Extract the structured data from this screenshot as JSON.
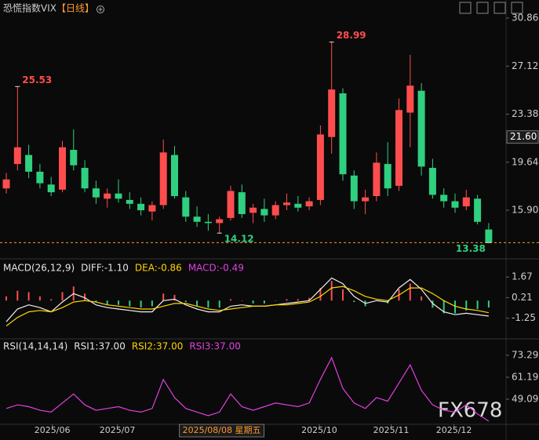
{
  "title": "恐慌指数VIX",
  "period": "【日线】",
  "watermark": "FX678",
  "chart_data": [
    {
      "type": "candlestick",
      "up_color": "#ff4d4d",
      "down_color": "#2fd07f",
      "open": [
        17.6,
        19.5,
        20.2,
        18.9,
        17.9,
        17.5,
        20.6,
        19.2,
        17.6,
        16.8,
        17.2,
        16.7,
        16.4,
        15.8,
        16.3,
        20.2,
        16.9,
        15.4,
        15.0,
        14.9,
        15.3,
        17.3,
        15.7,
        16.0,
        15.5,
        16.3,
        16.4,
        16.2,
        16.7,
        21.6,
        25.0,
        18.6,
        16.6,
        17.0,
        19.5,
        17.8,
        23.5,
        25.2,
        19.2,
        17.1,
        16.6,
        16.2,
        16.8,
        14.4
      ],
      "high": [
        18.8,
        25.53,
        21.0,
        19.5,
        18.5,
        21.3,
        22.2,
        19.8,
        18.2,
        17.6,
        18.3,
        17.3,
        16.9,
        16.6,
        21.4,
        20.9,
        17.4,
        16.2,
        15.6,
        15.4,
        17.8,
        17.9,
        16.4,
        16.8,
        16.6,
        17.2,
        17.0,
        16.9,
        22.5,
        28.99,
        25.4,
        19.0,
        17.5,
        20.4,
        21.2,
        24.6,
        28.0,
        25.8,
        19.9,
        17.6,
        17.2,
        17.5,
        17.1,
        14.9
      ],
      "low": [
        17.2,
        19.0,
        18.4,
        17.6,
        17.0,
        17.3,
        19.0,
        17.3,
        16.4,
        16.1,
        16.5,
        16.0,
        15.5,
        15.1,
        16.0,
        16.8,
        15.0,
        14.6,
        14.3,
        14.12,
        15.1,
        15.3,
        14.9,
        15.0,
        15.2,
        15.9,
        15.8,
        15.9,
        16.3,
        20.3,
        18.2,
        16.0,
        15.6,
        16.6,
        17.0,
        17.4,
        20.8,
        18.6,
        16.8,
        16.1,
        15.7,
        15.9,
        14.8,
        13.38
      ],
      "close": [
        18.3,
        20.8,
        18.9,
        18.0,
        17.3,
        20.8,
        19.4,
        17.6,
        16.9,
        17.2,
        16.8,
        16.4,
        15.9,
        16.3,
        20.4,
        17.0,
        15.4,
        15.0,
        14.9,
        15.2,
        17.4,
        15.6,
        16.1,
        15.5,
        16.3,
        16.5,
        16.1,
        16.6,
        21.8,
        25.3,
        18.7,
        16.6,
        16.9,
        19.6,
        17.6,
        23.7,
        25.6,
        19.3,
        17.1,
        16.6,
        16.1,
        16.9,
        15.0,
        13.38
      ],
      "ylim": [
        12.85,
        31.35
      ],
      "yticks": [
        30.86,
        27.12,
        23.38,
        19.64,
        {
          "value": 15.9,
          "label": "15.90"
        }
      ],
      "price_mark": {
        "value": 21.6,
        "label": "21.60"
      },
      "last_price": 13.38,
      "annotations": [
        {
          "index": 1,
          "value": 25.53,
          "color": "#ff4d4d"
        },
        {
          "index": 29,
          "value": 28.99,
          "color": "#ff4d4d"
        },
        {
          "index": 19,
          "value": 14.12,
          "color": "#2fd07f"
        },
        {
          "index": 43,
          "value": 13.38,
          "color": "#2fd07f"
        }
      ]
    },
    {
      "type": "bar_line",
      "legend": [
        {
          "text": "MACD(26,12,9)",
          "color": "#e6e6e6"
        },
        {
          "text": "DIFF:-1.10",
          "color": "#e6e6e6"
        },
        {
          "text": "DEA:-0.86",
          "color": "#ffd400"
        },
        {
          "text": "MACD:-0.49",
          "color": "#e040e0"
        }
      ],
      "up_color": "#ff4d4d",
      "down_color": "#2fd07f",
      "series": [
        {
          "type": "bar",
          "values": [
            0.3,
            0.7,
            0.6,
            0.3,
            0.1,
            0.6,
            1.0,
            0.5,
            -0.1,
            -0.3,
            -0.3,
            -0.4,
            -0.5,
            -0.4,
            0.5,
            0.4,
            -0.1,
            -0.4,
            -0.5,
            -0.5,
            0.1,
            0.0,
            -0.2,
            -0.2,
            0.0,
            0.1,
            0.1,
            0.2,
            0.9,
            1.4,
            0.8,
            -0.1,
            -0.4,
            0.0,
            -0.2,
            0.8,
            1.2,
            0.3,
            -0.5,
            -0.9,
            -0.9,
            -0.7,
            -0.6,
            -0.49
          ]
        },
        {
          "type": "line",
          "color": "#f0f0f0",
          "values": [
            -1.5,
            -0.6,
            -0.3,
            -0.5,
            -0.8,
            -0.1,
            0.5,
            0.2,
            -0.3,
            -0.5,
            -0.6,
            -0.7,
            -0.8,
            -0.8,
            0.0,
            0.1,
            -0.3,
            -0.6,
            -0.8,
            -0.8,
            -0.4,
            -0.3,
            -0.4,
            -0.4,
            -0.3,
            -0.2,
            -0.1,
            0.0,
            0.8,
            1.6,
            1.2,
            0.3,
            -0.2,
            0.0,
            -0.1,
            0.9,
            1.5,
            0.8,
            -0.2,
            -0.8,
            -1.0,
            -0.9,
            -1.0,
            -1.1
          ]
        },
        {
          "type": "line",
          "color": "#ffd400",
          "values": [
            -1.8,
            -1.2,
            -0.8,
            -0.7,
            -0.8,
            -0.5,
            -0.1,
            0.0,
            -0.1,
            -0.3,
            -0.4,
            -0.5,
            -0.6,
            -0.6,
            -0.4,
            -0.2,
            -0.2,
            -0.4,
            -0.6,
            -0.7,
            -0.6,
            -0.5,
            -0.4,
            -0.4,
            -0.3,
            -0.3,
            -0.2,
            -0.1,
            0.3,
            0.9,
            1.0,
            0.7,
            0.3,
            0.1,
            0.0,
            0.4,
            0.9,
            0.9,
            0.5,
            0.0,
            -0.4,
            -0.6,
            -0.7,
            -0.86
          ]
        }
      ],
      "ylim": [
        -2.6,
        2.74
      ],
      "yticks": [
        1.67,
        0.21,
        -1.25
      ]
    },
    {
      "type": "line",
      "legend": [
        {
          "text": "RSI(14,14,14)",
          "color": "#e6e6e6"
        },
        {
          "text": "RSI1:37.00",
          "color": "#e6e6e6"
        },
        {
          "text": "RSI2:37.00",
          "color": "#ffd400"
        },
        {
          "text": "RSI3:37.00",
          "color": "#e040e0"
        }
      ],
      "series": [
        {
          "color": "#e040e0",
          "values": [
            44,
            46,
            45,
            43,
            42,
            47,
            52,
            46,
            43,
            44,
            45,
            43,
            42,
            44,
            60,
            50,
            44,
            42,
            40,
            42,
            52,
            45,
            43,
            45,
            47,
            46,
            45,
            47,
            60,
            72,
            55,
            47,
            44,
            50,
            48,
            58,
            68,
            54,
            46,
            43,
            42,
            46,
            41,
            37
          ]
        }
      ],
      "ylim": [
        35.7,
        81.5
      ],
      "yticks": [
        73.29,
        61.19,
        49.09
      ],
      "xticks": [
        {
          "value": 4.1,
          "label": "2025/06"
        },
        {
          "value": 9.9,
          "label": "2025/07"
        },
        {
          "value": 27.9,
          "label": "2025/10"
        },
        {
          "value": 34.3,
          "label": "2025/11"
        },
        {
          "value": 39.9,
          "label": "2025/12"
        }
      ],
      "crosshair": {
        "value": 19.2,
        "label": "2025/08/08 星期五"
      }
    }
  ]
}
